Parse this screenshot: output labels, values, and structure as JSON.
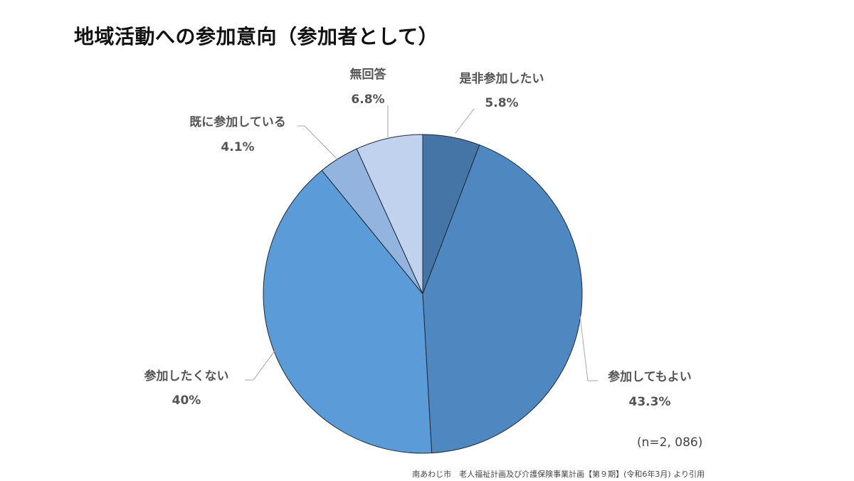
{
  "title": "地域活動への参加意向（参加者として）",
  "chart_data": {
    "type": "pie",
    "slices": [
      {
        "label": "是非参加したい",
        "value": 5.8,
        "value_label": "5.8%",
        "color": "#4574a6"
      },
      {
        "label": "参加してもよい",
        "value": 43.3,
        "value_label": "43.3%",
        "color": "#4f87c0"
      },
      {
        "label": "参加したくない",
        "value": 40,
        "value_label": "40%",
        "color": "#5b9bd8"
      },
      {
        "label": "既に参加している",
        "value": 4.1,
        "value_label": "4.1%",
        "color": "#92b4df"
      },
      {
        "label": "無回答",
        "value": 6.8,
        "value_label": "6.8%",
        "color": "#c0d2ed"
      }
    ],
    "start_angle_deg": 0,
    "direction": "clockwise"
  },
  "sample_note": "(n=2, 086)",
  "source": "南あわじ市　老人福祉計画及び介護保険事業計画【第９期】(令和6年3月) より引用"
}
